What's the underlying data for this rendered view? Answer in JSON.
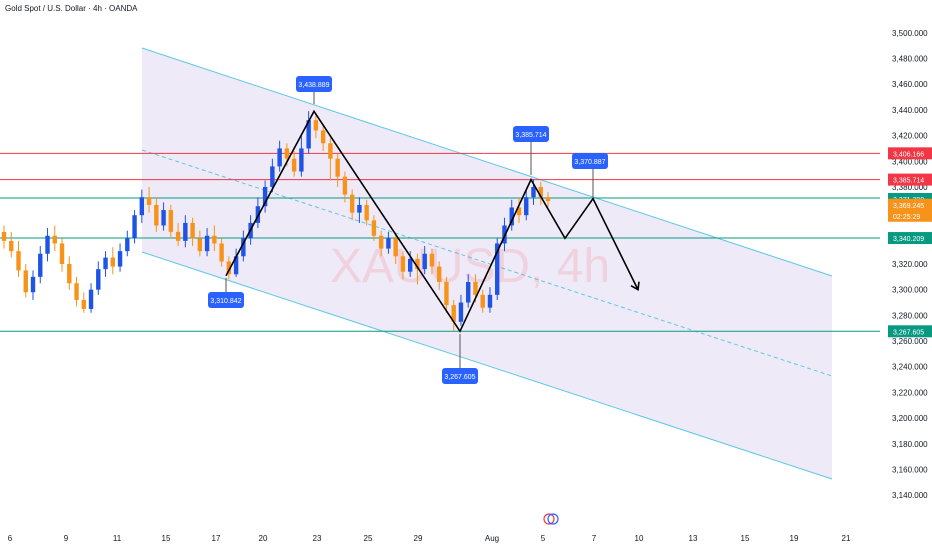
{
  "header": {
    "title": "Gold Spot / U.S. Dollar · 4h · OANDA"
  },
  "watermark": "XAUUSD, 4h",
  "colors": {
    "up": "#1e53e5",
    "down": "#f7931a",
    "channel_line": "#5bc8e8",
    "channel_fill": "#efeaf7",
    "red_line": "#f23645",
    "green_line": "#089981",
    "label_blue": "#2962ff",
    "zigzag": "#000000"
  },
  "chart_data": {
    "type": "candlestick",
    "symbol": "XAUUSD",
    "timeframe": "4h",
    "ylim": [
      3130,
      3510
    ],
    "y_ticks": [
      3140,
      3160,
      3180,
      3200,
      3220,
      3240,
      3260,
      3280,
      3300,
      3320,
      3340,
      3360,
      3380,
      3400,
      3420,
      3440,
      3460,
      3480,
      3500
    ],
    "y_tick_labels": [
      "3,140.000",
      "3,160.000",
      "3,180.000",
      "3,200.000",
      "3,220.000",
      "3,240.000",
      "3,260.000",
      "3,280.000",
      "3,300.000",
      "3,320.000",
      "3,340.000",
      "3,360.000",
      "3,380.000",
      "3,400.000",
      "3,420.000",
      "3,440.000",
      "3,460.000",
      "3,480.000",
      "3,500.000"
    ],
    "x_ticks": [
      "6",
      "9",
      "11",
      "15",
      "17",
      "20",
      "23",
      "25",
      "29",
      "Aug",
      "5",
      "7",
      "10",
      "13",
      "15",
      "19",
      "21"
    ],
    "price_tags": [
      {
        "value": "3,406.166",
        "color": "#f23645"
      },
      {
        "value": "3,385.714",
        "color": "#f23645"
      },
      {
        "value": "3,371.398",
        "color": "#089981"
      },
      {
        "value": "3,369.245",
        "color": "#f7931a"
      },
      {
        "value": "02:25:29",
        "color": "#f7931a"
      },
      {
        "value": "3,340.209",
        "color": "#089981"
      },
      {
        "value": "3,267.605",
        "color": "#089981"
      }
    ],
    "horizontal_lines": [
      {
        "price": 3406.166,
        "color": "#f23645"
      },
      {
        "price": 3385.714,
        "color": "#f23645"
      },
      {
        "price": 3371.398,
        "color": "#089981"
      },
      {
        "price": 3340.209,
        "color": "#089981"
      },
      {
        "price": 3267.605,
        "color": "#089981"
      }
    ],
    "pivot_labels": [
      {
        "text": "3,438.889",
        "price": 3438.889
      },
      {
        "text": "3,310.842",
        "price": 3310.842
      },
      {
        "text": "3,267.605",
        "price": 3267.605
      },
      {
        "text": "3,385.714",
        "price": 3385.714
      },
      {
        "text": "3,370.887",
        "price": 3370.887
      }
    ],
    "zigzag": [
      3310.842,
      3438.889,
      3267.605,
      3385.714,
      3340,
      3370.887,
      3300
    ],
    "candles": [
      [
        3345,
        3338,
        3350,
        3332
      ],
      [
        3338,
        3330,
        3345,
        3325
      ],
      [
        3330,
        3315,
        3338,
        3310
      ],
      [
        3315,
        3298,
        3320,
        3294
      ],
      [
        3298,
        3310,
        3315,
        3292
      ],
      [
        3310,
        3328,
        3334,
        3305
      ],
      [
        3328,
        3342,
        3348,
        3322
      ],
      [
        3342,
        3336,
        3350,
        3330
      ],
      [
        3336,
        3320,
        3340,
        3314
      ],
      [
        3320,
        3305,
        3326,
        3300
      ],
      [
        3305,
        3292,
        3310,
        3287
      ],
      [
        3292,
        3285,
        3298,
        3282
      ],
      [
        3285,
        3300,
        3305,
        3282
      ],
      [
        3300,
        3316,
        3322,
        3296
      ],
      [
        3316,
        3325,
        3330,
        3310
      ],
      [
        3325,
        3318,
        3333,
        3312
      ],
      [
        3318,
        3330,
        3336,
        3314
      ],
      [
        3330,
        3340,
        3346,
        3326
      ],
      [
        3340,
        3358,
        3362,
        3336
      ],
      [
        3358,
        3372,
        3378,
        3352
      ],
      [
        3372,
        3366,
        3380,
        3360
      ],
      [
        3366,
        3350,
        3372,
        3345
      ],
      [
        3350,
        3362,
        3368,
        3346
      ],
      [
        3362,
        3345,
        3366,
        3340
      ],
      [
        3345,
        3338,
        3352,
        3334
      ],
      [
        3338,
        3352,
        3358,
        3333
      ],
      [
        3352,
        3340,
        3356,
        3334
      ],
      [
        3340,
        3330,
        3346,
        3326
      ],
      [
        3330,
        3342,
        3348,
        3326
      ],
      [
        3342,
        3336,
        3350,
        3330
      ],
      [
        3336,
        3322,
        3340,
        3318
      ],
      [
        3322,
        3312,
        3326,
        3308
      ],
      [
        3312,
        3326,
        3332,
        3310
      ],
      [
        3326,
        3340,
        3346,
        3322
      ],
      [
        3340,
        3352,
        3358,
        3335
      ],
      [
        3352,
        3365,
        3372,
        3348
      ],
      [
        3365,
        3380,
        3385,
        3360
      ],
      [
        3380,
        3396,
        3402,
        3376
      ],
      [
        3396,
        3410,
        3416,
        3392
      ],
      [
        3410,
        3402,
        3414,
        3396
      ],
      [
        3402,
        3392,
        3408,
        3388
      ],
      [
        3392,
        3410,
        3420,
        3388
      ],
      [
        3410,
        3432,
        3439,
        3406
      ],
      [
        3432,
        3424,
        3436,
        3418
      ],
      [
        3424,
        3414,
        3428,
        3408
      ],
      [
        3414,
        3402,
        3418,
        3385
      ],
      [
        3402,
        3388,
        3406,
        3380
      ],
      [
        3388,
        3374,
        3392,
        3368
      ],
      [
        3374,
        3360,
        3378,
        3354
      ],
      [
        3360,
        3366,
        3372,
        3352
      ],
      [
        3366,
        3354,
        3370,
        3350
      ],
      [
        3354,
        3342,
        3358,
        3338
      ],
      [
        3342,
        3332,
        3346,
        3326
      ],
      [
        3332,
        3340,
        3345,
        3328
      ],
      [
        3340,
        3326,
        3344,
        3320
      ],
      [
        3326,
        3314,
        3330,
        3308
      ],
      [
        3314,
        3324,
        3330,
        3310
      ],
      [
        3324,
        3316,
        3328,
        3304
      ],
      [
        3316,
        3328,
        3334,
        3312
      ],
      [
        3328,
        3318,
        3332,
        3312
      ],
      [
        3318,
        3306,
        3322,
        3300
      ],
      [
        3306,
        3288,
        3310,
        3282
      ],
      [
        3288,
        3275,
        3292,
        3268
      ],
      [
        3275,
        3290,
        3296,
        3272
      ],
      [
        3290,
        3306,
        3312,
        3286
      ],
      [
        3306,
        3296,
        3312,
        3290
      ],
      [
        3296,
        3286,
        3300,
        3282
      ],
      [
        3286,
        3296,
        3302,
        3282
      ],
      [
        3296,
        3336,
        3340,
        3292
      ],
      [
        3336,
        3350,
        3356,
        3330
      ],
      [
        3350,
        3364,
        3370,
        3346
      ],
      [
        3364,
        3358,
        3372,
        3352
      ],
      [
        3358,
        3372,
        3378,
        3354
      ],
      [
        3372,
        3380,
        3386,
        3366
      ],
      [
        3380,
        3372,
        3384,
        3366
      ],
      [
        3372,
        3369,
        3376,
        3364
      ]
    ]
  }
}
